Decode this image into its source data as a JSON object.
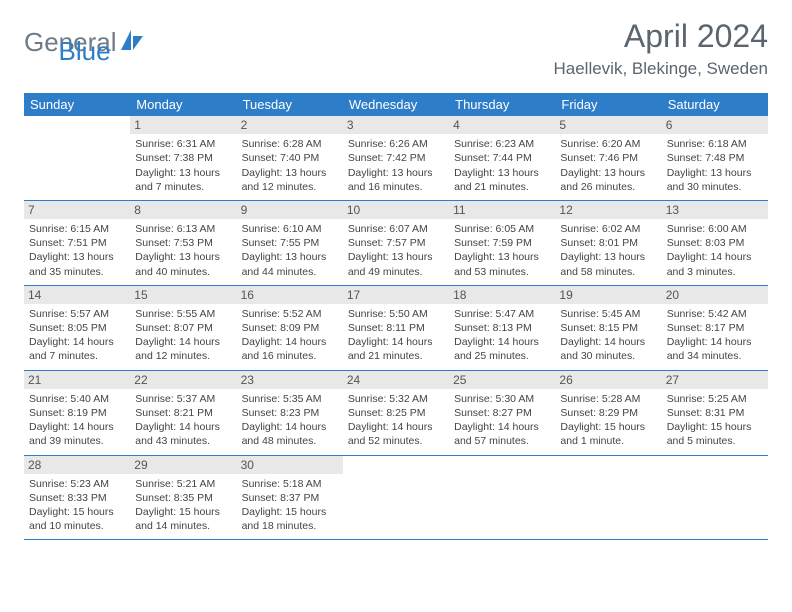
{
  "logo": {
    "word1": "General",
    "word2": "Blue"
  },
  "title": "April 2024",
  "location": "Haellevik, Blekinge, Sweden",
  "colors": {
    "header_bg": "#2d7dc8",
    "header_text": "#ffffff",
    "daynum_bg": "#e8e8e8",
    "rule": "#2d7dc8",
    "body_text": "#444444",
    "title_text": "#5a6570"
  },
  "day_headers": [
    "Sunday",
    "Monday",
    "Tuesday",
    "Wednesday",
    "Thursday",
    "Friday",
    "Saturday"
  ],
  "weeks": [
    [
      {
        "n": "",
        "sr": "",
        "ss": "",
        "dl": ""
      },
      {
        "n": "1",
        "sr": "Sunrise: 6:31 AM",
        "ss": "Sunset: 7:38 PM",
        "dl": "Daylight: 13 hours and 7 minutes."
      },
      {
        "n": "2",
        "sr": "Sunrise: 6:28 AM",
        "ss": "Sunset: 7:40 PM",
        "dl": "Daylight: 13 hours and 12 minutes."
      },
      {
        "n": "3",
        "sr": "Sunrise: 6:26 AM",
        "ss": "Sunset: 7:42 PM",
        "dl": "Daylight: 13 hours and 16 minutes."
      },
      {
        "n": "4",
        "sr": "Sunrise: 6:23 AM",
        "ss": "Sunset: 7:44 PM",
        "dl": "Daylight: 13 hours and 21 minutes."
      },
      {
        "n": "5",
        "sr": "Sunrise: 6:20 AM",
        "ss": "Sunset: 7:46 PM",
        "dl": "Daylight: 13 hours and 26 minutes."
      },
      {
        "n": "6",
        "sr": "Sunrise: 6:18 AM",
        "ss": "Sunset: 7:48 PM",
        "dl": "Daylight: 13 hours and 30 minutes."
      }
    ],
    [
      {
        "n": "7",
        "sr": "Sunrise: 6:15 AM",
        "ss": "Sunset: 7:51 PM",
        "dl": "Daylight: 13 hours and 35 minutes."
      },
      {
        "n": "8",
        "sr": "Sunrise: 6:13 AM",
        "ss": "Sunset: 7:53 PM",
        "dl": "Daylight: 13 hours and 40 minutes."
      },
      {
        "n": "9",
        "sr": "Sunrise: 6:10 AM",
        "ss": "Sunset: 7:55 PM",
        "dl": "Daylight: 13 hours and 44 minutes."
      },
      {
        "n": "10",
        "sr": "Sunrise: 6:07 AM",
        "ss": "Sunset: 7:57 PM",
        "dl": "Daylight: 13 hours and 49 minutes."
      },
      {
        "n": "11",
        "sr": "Sunrise: 6:05 AM",
        "ss": "Sunset: 7:59 PM",
        "dl": "Daylight: 13 hours and 53 minutes."
      },
      {
        "n": "12",
        "sr": "Sunrise: 6:02 AM",
        "ss": "Sunset: 8:01 PM",
        "dl": "Daylight: 13 hours and 58 minutes."
      },
      {
        "n": "13",
        "sr": "Sunrise: 6:00 AM",
        "ss": "Sunset: 8:03 PM",
        "dl": "Daylight: 14 hours and 3 minutes."
      }
    ],
    [
      {
        "n": "14",
        "sr": "Sunrise: 5:57 AM",
        "ss": "Sunset: 8:05 PM",
        "dl": "Daylight: 14 hours and 7 minutes."
      },
      {
        "n": "15",
        "sr": "Sunrise: 5:55 AM",
        "ss": "Sunset: 8:07 PM",
        "dl": "Daylight: 14 hours and 12 minutes."
      },
      {
        "n": "16",
        "sr": "Sunrise: 5:52 AM",
        "ss": "Sunset: 8:09 PM",
        "dl": "Daylight: 14 hours and 16 minutes."
      },
      {
        "n": "17",
        "sr": "Sunrise: 5:50 AM",
        "ss": "Sunset: 8:11 PM",
        "dl": "Daylight: 14 hours and 21 minutes."
      },
      {
        "n": "18",
        "sr": "Sunrise: 5:47 AM",
        "ss": "Sunset: 8:13 PM",
        "dl": "Daylight: 14 hours and 25 minutes."
      },
      {
        "n": "19",
        "sr": "Sunrise: 5:45 AM",
        "ss": "Sunset: 8:15 PM",
        "dl": "Daylight: 14 hours and 30 minutes."
      },
      {
        "n": "20",
        "sr": "Sunrise: 5:42 AM",
        "ss": "Sunset: 8:17 PM",
        "dl": "Daylight: 14 hours and 34 minutes."
      }
    ],
    [
      {
        "n": "21",
        "sr": "Sunrise: 5:40 AM",
        "ss": "Sunset: 8:19 PM",
        "dl": "Daylight: 14 hours and 39 minutes."
      },
      {
        "n": "22",
        "sr": "Sunrise: 5:37 AM",
        "ss": "Sunset: 8:21 PM",
        "dl": "Daylight: 14 hours and 43 minutes."
      },
      {
        "n": "23",
        "sr": "Sunrise: 5:35 AM",
        "ss": "Sunset: 8:23 PM",
        "dl": "Daylight: 14 hours and 48 minutes."
      },
      {
        "n": "24",
        "sr": "Sunrise: 5:32 AM",
        "ss": "Sunset: 8:25 PM",
        "dl": "Daylight: 14 hours and 52 minutes."
      },
      {
        "n": "25",
        "sr": "Sunrise: 5:30 AM",
        "ss": "Sunset: 8:27 PM",
        "dl": "Daylight: 14 hours and 57 minutes."
      },
      {
        "n": "26",
        "sr": "Sunrise: 5:28 AM",
        "ss": "Sunset: 8:29 PM",
        "dl": "Daylight: 15 hours and 1 minute."
      },
      {
        "n": "27",
        "sr": "Sunrise: 5:25 AM",
        "ss": "Sunset: 8:31 PM",
        "dl": "Daylight: 15 hours and 5 minutes."
      }
    ],
    [
      {
        "n": "28",
        "sr": "Sunrise: 5:23 AM",
        "ss": "Sunset: 8:33 PM",
        "dl": "Daylight: 15 hours and 10 minutes."
      },
      {
        "n": "29",
        "sr": "Sunrise: 5:21 AM",
        "ss": "Sunset: 8:35 PM",
        "dl": "Daylight: 15 hours and 14 minutes."
      },
      {
        "n": "30",
        "sr": "Sunrise: 5:18 AM",
        "ss": "Sunset: 8:37 PM",
        "dl": "Daylight: 15 hours and 18 minutes."
      },
      {
        "n": "",
        "sr": "",
        "ss": "",
        "dl": ""
      },
      {
        "n": "",
        "sr": "",
        "ss": "",
        "dl": ""
      },
      {
        "n": "",
        "sr": "",
        "ss": "",
        "dl": ""
      },
      {
        "n": "",
        "sr": "",
        "ss": "",
        "dl": ""
      }
    ]
  ]
}
